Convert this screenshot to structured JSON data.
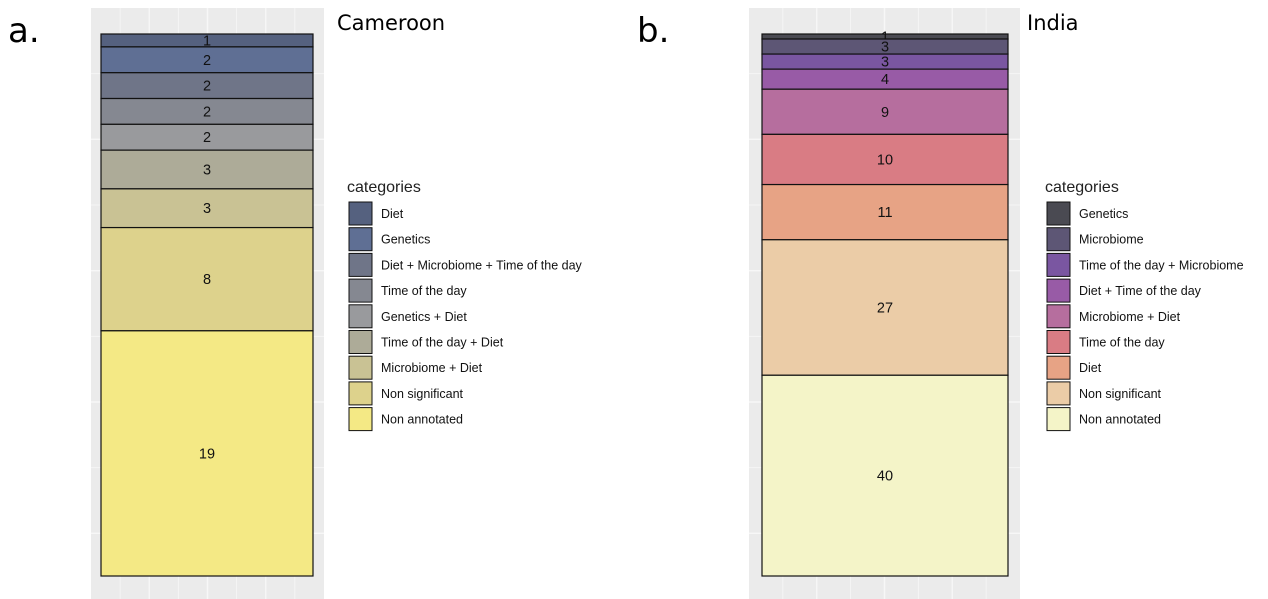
{
  "chart_data": [
    {
      "type": "bar",
      "stacked": true,
      "panel_label": "a.",
      "title": "Cameroon",
      "legend_title": "categories",
      "legend_position": "right",
      "grid": true,
      "stack_order_top_to_bottom": [
        "Diet",
        "Genetics",
        "Diet + Microbiome + Time of the day",
        "Time of the day",
        "Genetics + Diet",
        "Time of the day + Diet",
        "Microbiome + Diet",
        "Non significant",
        "Non annotated"
      ],
      "series": [
        {
          "name": "Diet",
          "value": 1,
          "color": "#55617f"
        },
        {
          "name": "Genetics",
          "value": 2,
          "color": "#5f6f94"
        },
        {
          "name": "Diet + Microbiome + Time of the day",
          "value": 2,
          "color": "#6f7588"
        },
        {
          "name": "Time of the day",
          "value": 2,
          "color": "#858891"
        },
        {
          "name": "Genetics + Diet",
          "value": 2,
          "color": "#999a9d"
        },
        {
          "name": "Time of the day + Diet",
          "value": 3,
          "color": "#adab98"
        },
        {
          "name": "Microbiome + Diet",
          "value": 3,
          "color": "#c9c294"
        },
        {
          "name": "Non significant",
          "value": 8,
          "color": "#ddd28c"
        },
        {
          "name": "Non annotated",
          "value": 19,
          "color": "#f4e985"
        }
      ]
    },
    {
      "type": "bar",
      "stacked": true,
      "panel_label": "b.",
      "title": "India",
      "legend_title": "categories",
      "legend_position": "right",
      "grid": true,
      "stack_order_top_to_bottom": [
        "Genetics",
        "Microbiome",
        "Time of the day + Microbiome",
        "Diet + Time of the day",
        "Microbiome + Diet",
        "Time of the day",
        "Diet",
        "Non significant",
        "Non annotated"
      ],
      "series": [
        {
          "name": "Genetics",
          "value": 1,
          "color": "#4a4a52"
        },
        {
          "name": "Microbiome",
          "value": 3,
          "color": "#5d5675"
        },
        {
          "name": "Time of the day + Microbiome",
          "value": 3,
          "color": "#7a56a1"
        },
        {
          "name": "Diet + Time of the day",
          "value": 4,
          "color": "#985ba6"
        },
        {
          "name": "Microbiome + Diet",
          "value": 9,
          "color": "#b66e9e"
        },
        {
          "name": "Time of the day",
          "value": 10,
          "color": "#d97c84"
        },
        {
          "name": "Diet",
          "value": 11,
          "color": "#e7a385"
        },
        {
          "name": "Non significant",
          "value": 27,
          "color": "#ebcca7"
        },
        {
          "name": "Non annotated",
          "value": 40,
          "color": "#f4f4c8"
        }
      ]
    }
  ]
}
